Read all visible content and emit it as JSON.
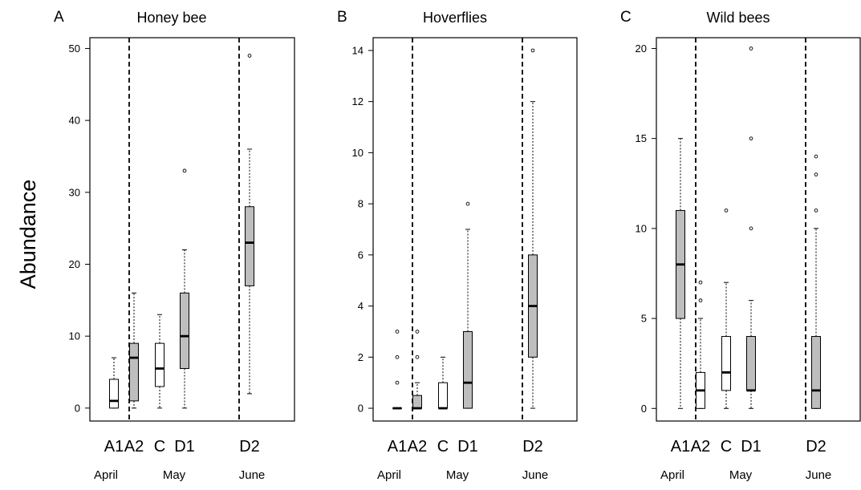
{
  "chart_data": {
    "type": "box",
    "ylabel": "Abundance",
    "panels": [
      {
        "letter": "A",
        "title": "Honey bee",
        "ylim": [
          -1.8,
          51.5
        ],
        "yticks": [
          0,
          10,
          20,
          30,
          40,
          50
        ],
        "months": [
          "April",
          "May",
          "June"
        ],
        "boxes": [
          {
            "label": "A1",
            "fill": "#ffffff",
            "min": 0,
            "q1": 0,
            "median": 1,
            "q3": 4,
            "max": 7,
            "outliers": []
          },
          {
            "label": "A2",
            "fill": "#bebebe",
            "min": 0,
            "q1": 1,
            "median": 7,
            "q3": 9,
            "max": 16,
            "outliers": []
          },
          {
            "label": "C",
            "fill": "#ffffff",
            "min": 0,
            "q1": 3,
            "median": 5.5,
            "q3": 9,
            "max": 13,
            "outliers": []
          },
          {
            "label": "D1",
            "fill": "#bebebe",
            "min": 0,
            "q1": 5.5,
            "median": 10,
            "q3": 16,
            "max": 22,
            "outliers": [
              33
            ]
          },
          {
            "label": "D2",
            "fill": "#bebebe",
            "min": 2,
            "q1": 17,
            "median": 23,
            "q3": 28,
            "max": 36,
            "outliers": [
              49
            ]
          }
        ]
      },
      {
        "letter": "B",
        "title": "Hoverflies",
        "ylim": [
          -0.5,
          14.5
        ],
        "yticks": [
          0,
          2,
          4,
          6,
          8,
          10,
          12,
          14
        ],
        "months": [
          "April",
          "May",
          "June"
        ],
        "boxes": [
          {
            "label": "A1",
            "fill": "#ffffff",
            "min": 0,
            "q1": 0,
            "median": 0,
            "q3": 0,
            "max": 0,
            "outliers": [
              1,
              2,
              3
            ]
          },
          {
            "label": "A2",
            "fill": "#bebebe",
            "min": 0,
            "q1": 0,
            "median": 0,
            "q3": 0.5,
            "max": 1,
            "outliers": [
              2,
              3
            ]
          },
          {
            "label": "C",
            "fill": "#ffffff",
            "min": 0,
            "q1": 0,
            "median": 0,
            "q3": 1,
            "max": 2,
            "outliers": []
          },
          {
            "label": "D1",
            "fill": "#bebebe",
            "min": 0,
            "q1": 0,
            "median": 1,
            "q3": 3,
            "max": 7,
            "outliers": [
              8
            ]
          },
          {
            "label": "D2",
            "fill": "#bebebe",
            "min": 0,
            "q1": 2,
            "median": 4,
            "q3": 6,
            "max": 12,
            "outliers": [
              14
            ]
          }
        ]
      },
      {
        "letter": "C",
        "title": "Wild bees",
        "ylim": [
          -0.7,
          20.6
        ],
        "yticks": [
          0,
          5,
          10,
          15,
          20
        ],
        "months": [
          "April",
          "May",
          "June"
        ],
        "boxes": [
          {
            "label": "A1",
            "fill": "#bebebe",
            "min": 0,
            "q1": 5,
            "median": 8,
            "q3": 11,
            "max": 15,
            "outliers": []
          },
          {
            "label": "A2",
            "fill": "#ffffff",
            "min": 0,
            "q1": 0,
            "median": 1,
            "q3": 2,
            "max": 5,
            "outliers": [
              6,
              7
            ]
          },
          {
            "label": "C",
            "fill": "#ffffff",
            "min": 0,
            "q1": 1,
            "median": 2,
            "q3": 4,
            "max": 7,
            "outliers": [
              11
            ]
          },
          {
            "label": "D1",
            "fill": "#bebebe",
            "min": 0,
            "q1": 1,
            "median": 1,
            "q3": 4,
            "max": 6,
            "outliers": [
              10,
              15,
              20
            ]
          },
          {
            "label": "D2",
            "fill": "#bebebe",
            "min": 0,
            "q1": 0,
            "median": 1,
            "q3": 4,
            "max": 10,
            "outliers": [
              11,
              13,
              14
            ]
          }
        ]
      }
    ]
  }
}
